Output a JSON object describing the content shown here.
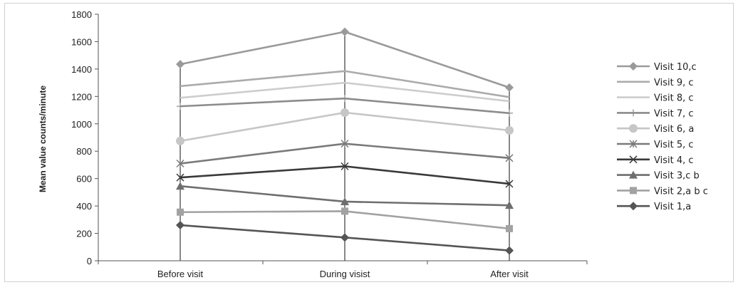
{
  "chart_data": {
    "type": "line",
    "title": "",
    "xlabel": "",
    "ylabel": "Mean value counts/minute",
    "ylim": [
      0,
      1800
    ],
    "yticks": [
      0,
      200,
      400,
      600,
      800,
      1000,
      1200,
      1400,
      1600,
      1800
    ],
    "grid": "vertical lines at categories",
    "legend": "right",
    "categories": [
      "Before visit",
      "During visist",
      "After visit"
    ],
    "series": [
      {
        "name": "Visit 10,c",
        "values": [
          1435,
          1672,
          1265
        ],
        "marker": "diamond",
        "color": "#9a9a9a"
      },
      {
        "name": "Visit 9, c",
        "values": [
          1275,
          1385,
          1195
        ],
        "marker": "none",
        "color": "#ababab"
      },
      {
        "name": "Visit 8, c",
        "values": [
          1190,
          1300,
          1165
        ],
        "marker": "none",
        "color": "#cdcdcd"
      },
      {
        "name": "Visit 7, c",
        "values": [
          1128,
          1185,
          1078
        ],
        "marker": "plus",
        "color": "#8c8c8c"
      },
      {
        "name": "Visit 6, a",
        "values": [
          875,
          1082,
          952
        ],
        "marker": "circle",
        "color": "#c6c6c6"
      },
      {
        "name": "Visit 5, c",
        "values": [
          710,
          855,
          750
        ],
        "marker": "asterisk",
        "color": "#7a7a7a"
      },
      {
        "name": "Visit 4, c",
        "values": [
          608,
          690,
          562
        ],
        "marker": "x",
        "color": "#3a3a3a"
      },
      {
        "name": "Visit 3,c b",
        "values": [
          545,
          432,
          405
        ],
        "marker": "triangle",
        "color": "#6e6e6e"
      },
      {
        "name": "Visit 2,a b c",
        "values": [
          355,
          362,
          235
        ],
        "marker": "square",
        "color": "#a2a2a2"
      },
      {
        "name": "Visit 1,a",
        "values": [
          260,
          170,
          75
        ],
        "marker": "diamond",
        "color": "#555555"
      }
    ]
  }
}
